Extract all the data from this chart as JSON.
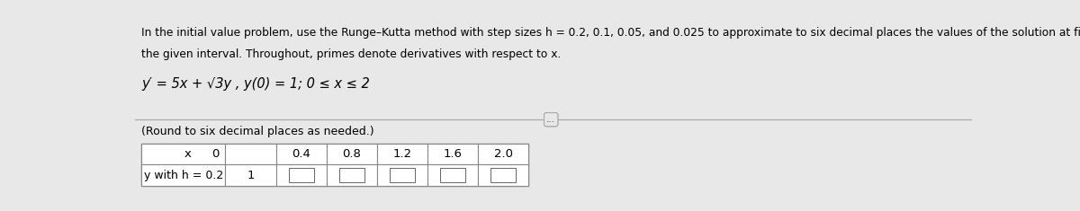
{
  "title_line1": "In the initial value problem, use the Runge–Kutta method with step sizes h = 0.2, 0.1, 0.05, and 0.025 to approximate to six decimal places the values of the solution at five equally spaced points of",
  "title_line2": "the given interval. Throughout, primes denote derivatives with respect to x.",
  "equation": "y′ = 5x + √3y , y(0) = 1; 0 ≤ x ≤ 2",
  "round_note": "(Round to six decimal places as needed.)",
  "x_values": [
    "0",
    "0.4",
    "0.8",
    "1.2",
    "1.6",
    "2.0"
  ],
  "row_label": "y with h = 0.2",
  "row_value_0": "1",
  "background_color": "#e8e8e8",
  "title_fontsize": 8.8,
  "eq_fontsize": 10.5,
  "note_fontsize": 9.0,
  "table_fontsize": 9.5
}
